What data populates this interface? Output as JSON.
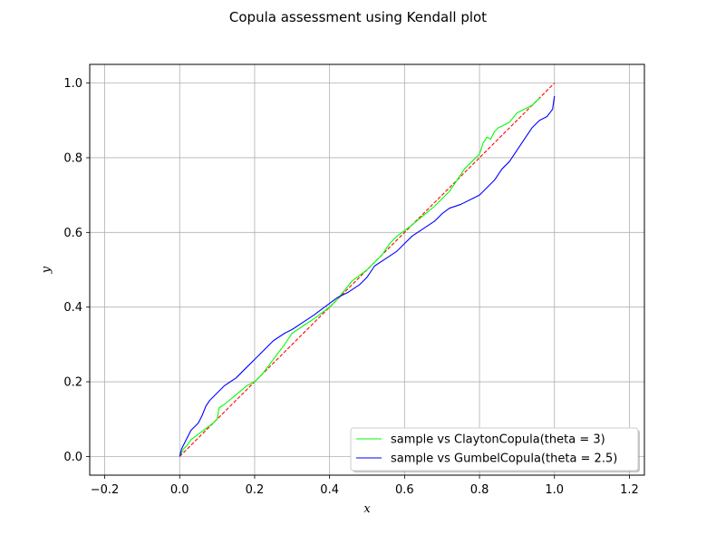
{
  "chart_data": {
    "type": "line",
    "title": "Copula assessment using Kendall plot",
    "xlabel": "x",
    "ylabel": "y",
    "xlim": [
      -0.24,
      1.24
    ],
    "ylim": [
      -0.05,
      1.05
    ],
    "xticks": [
      -0.2,
      0.0,
      0.2,
      0.4,
      0.6,
      0.8,
      1.0,
      1.2
    ],
    "xtick_labels": [
      "−0.2",
      "0.0",
      "0.2",
      "0.4",
      "0.6",
      "0.8",
      "1.0",
      "1.2"
    ],
    "yticks": [
      0.0,
      0.2,
      0.4,
      0.6,
      0.8,
      1.0
    ],
    "ytick_labels": [
      "0.0",
      "0.2",
      "0.4",
      "0.6",
      "0.8",
      "1.0"
    ],
    "grid": true,
    "legend_position": "lower-right",
    "series": [
      {
        "name": "sample vs ClaytonCopula(theta = 3)",
        "color": "#00ff00",
        "style": "solid",
        "x": [
          0.0,
          0.01,
          0.02,
          0.03,
          0.05,
          0.07,
          0.09,
          0.1,
          0.105,
          0.12,
          0.15,
          0.18,
          0.2,
          0.22,
          0.25,
          0.28,
          0.3,
          0.33,
          0.36,
          0.38,
          0.4,
          0.42,
          0.44,
          0.46,
          0.48,
          0.5,
          0.52,
          0.54,
          0.56,
          0.58,
          0.6,
          0.62,
          0.65,
          0.68,
          0.7,
          0.72,
          0.74,
          0.76,
          0.78,
          0.8,
          0.81,
          0.82,
          0.83,
          0.84,
          0.85,
          0.86,
          0.87,
          0.88,
          0.9,
          0.92,
          0.94,
          0.96
        ],
        "y": [
          0.0,
          0.02,
          0.03,
          0.045,
          0.06,
          0.075,
          0.09,
          0.1,
          0.13,
          0.14,
          0.165,
          0.19,
          0.2,
          0.22,
          0.26,
          0.3,
          0.33,
          0.35,
          0.37,
          0.385,
          0.4,
          0.42,
          0.445,
          0.47,
          0.485,
          0.5,
          0.52,
          0.54,
          0.57,
          0.59,
          0.605,
          0.62,
          0.645,
          0.67,
          0.69,
          0.71,
          0.74,
          0.77,
          0.79,
          0.81,
          0.84,
          0.855,
          0.85,
          0.87,
          0.88,
          0.885,
          0.89,
          0.895,
          0.92,
          0.93,
          0.94,
          0.96
        ]
      },
      {
        "name": "sample vs GumbelCopula(theta = 2.5)",
        "color": "#0000ff",
        "style": "solid",
        "x": [
          0.0,
          0.005,
          0.01,
          0.02,
          0.03,
          0.05,
          0.06,
          0.07,
          0.08,
          0.1,
          0.12,
          0.15,
          0.18,
          0.2,
          0.22,
          0.25,
          0.28,
          0.3,
          0.33,
          0.36,
          0.38,
          0.4,
          0.42,
          0.45,
          0.48,
          0.5,
          0.52,
          0.55,
          0.58,
          0.6,
          0.62,
          0.65,
          0.68,
          0.7,
          0.72,
          0.75,
          0.78,
          0.8,
          0.82,
          0.84,
          0.86,
          0.88,
          0.9,
          0.92,
          0.94,
          0.96,
          0.98,
          0.995,
          1.0
        ],
        "y": [
          0.0,
          0.02,
          0.03,
          0.05,
          0.07,
          0.09,
          0.11,
          0.135,
          0.15,
          0.17,
          0.19,
          0.21,
          0.24,
          0.26,
          0.28,
          0.31,
          0.33,
          0.34,
          0.36,
          0.38,
          0.395,
          0.41,
          0.425,
          0.44,
          0.46,
          0.48,
          0.51,
          0.53,
          0.55,
          0.57,
          0.59,
          0.61,
          0.63,
          0.65,
          0.665,
          0.675,
          0.69,
          0.7,
          0.72,
          0.74,
          0.77,
          0.79,
          0.82,
          0.85,
          0.88,
          0.9,
          0.91,
          0.93,
          0.965
        ]
      },
      {
        "name": "",
        "color": "#ff0000",
        "style": "dashed",
        "x": [
          0.0,
          1.0
        ],
        "y": [
          0.0,
          1.0
        ]
      }
    ]
  }
}
